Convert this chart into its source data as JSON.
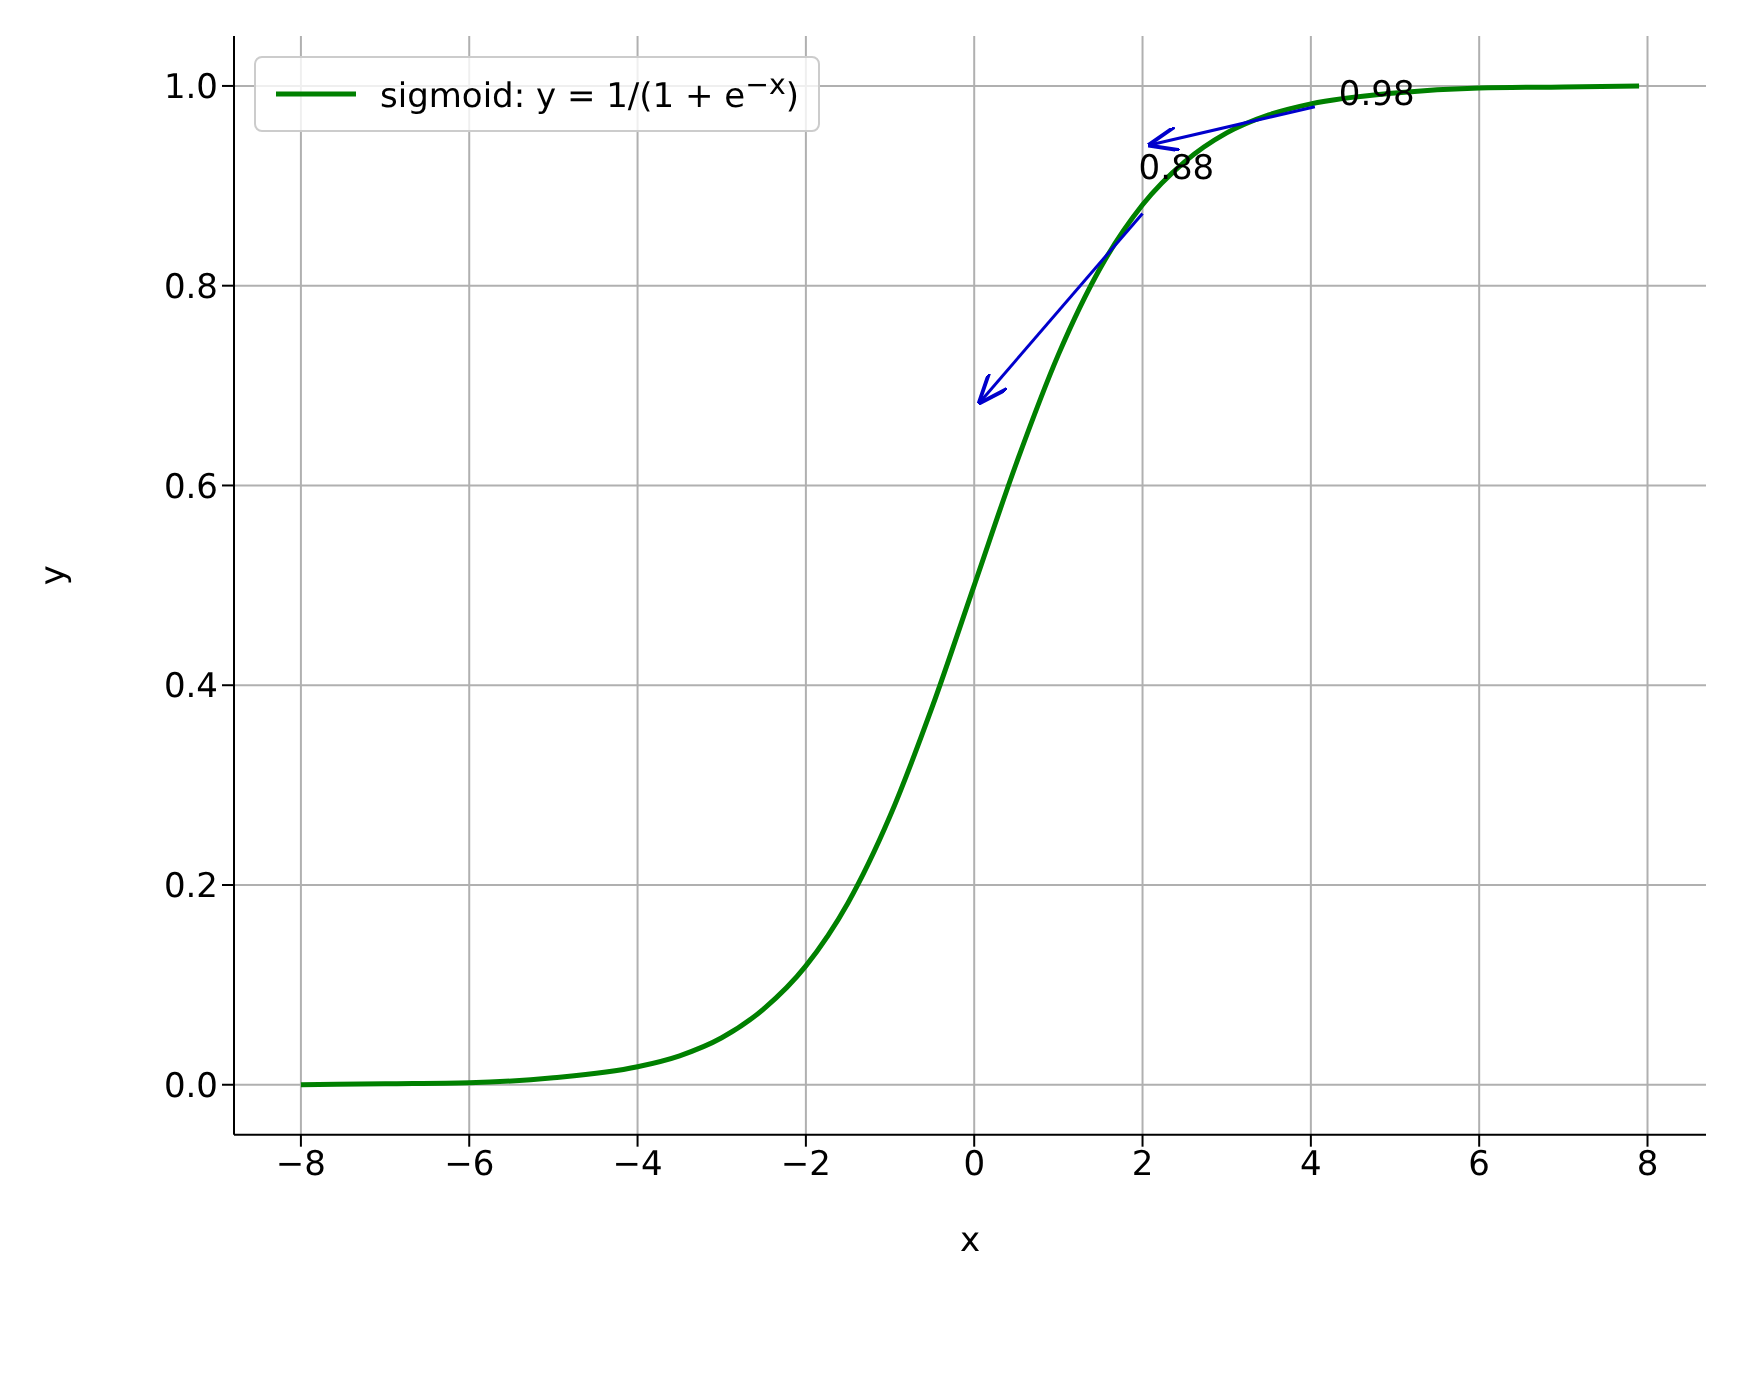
{
  "chart_data": {
    "type": "line",
    "xlabel": "x",
    "ylabel": "y",
    "x": [
      -8,
      -7,
      -6,
      -5,
      -4,
      -3.5,
      -3,
      -2.5,
      -2,
      -1.5,
      -1,
      -0.5,
      0,
      0.5,
      1,
      1.5,
      2,
      2.5,
      3,
      3.5,
      4,
      5,
      6,
      7,
      7.9
    ],
    "series": [
      {
        "name": "sigmoid: y = 1/(1 + e$^{−x}$)",
        "color": "#008000",
        "values": [
          0.0,
          0.001,
          0.002,
          0.007,
          0.018,
          0.029,
          0.047,
          0.076,
          0.119,
          0.182,
          0.269,
          0.378,
          0.5,
          0.622,
          0.731,
          0.818,
          0.881,
          0.924,
          0.953,
          0.971,
          0.982,
          0.993,
          0.998,
          0.999,
          1.0
        ]
      }
    ],
    "xlim": [
      -8.795,
      8.695
    ],
    "xticks": [
      {
        "value": -8,
        "label": "−8"
      },
      {
        "value": -6,
        "label": "−6"
      },
      {
        "value": -4,
        "label": "−4"
      },
      {
        "value": -2,
        "label": "−2"
      },
      0,
      2,
      4,
      6,
      8
    ],
    "ylim": [
      -0.05,
      1.05
    ],
    "yticks": [
      {
        "value": 0,
        "label": "0.0"
      },
      {
        "value": 0.2,
        "label": "0.2"
      },
      {
        "value": 0.4,
        "label": "0.4"
      },
      {
        "value": 0.6,
        "label": "0.6"
      },
      {
        "value": 0.8,
        "label": "0.8"
      },
      {
        "value": 1,
        "label": "1.0"
      }
    ],
    "annotations": [
      {
        "text": "0.98",
        "x": 4,
        "y": 0.98
      },
      {
        "text": "0.88",
        "x": 2,
        "y": 0.88
      }
    ],
    "grid": true,
    "legend": "top left",
    "marker": "none",
    "line_style": "solid"
  }
}
